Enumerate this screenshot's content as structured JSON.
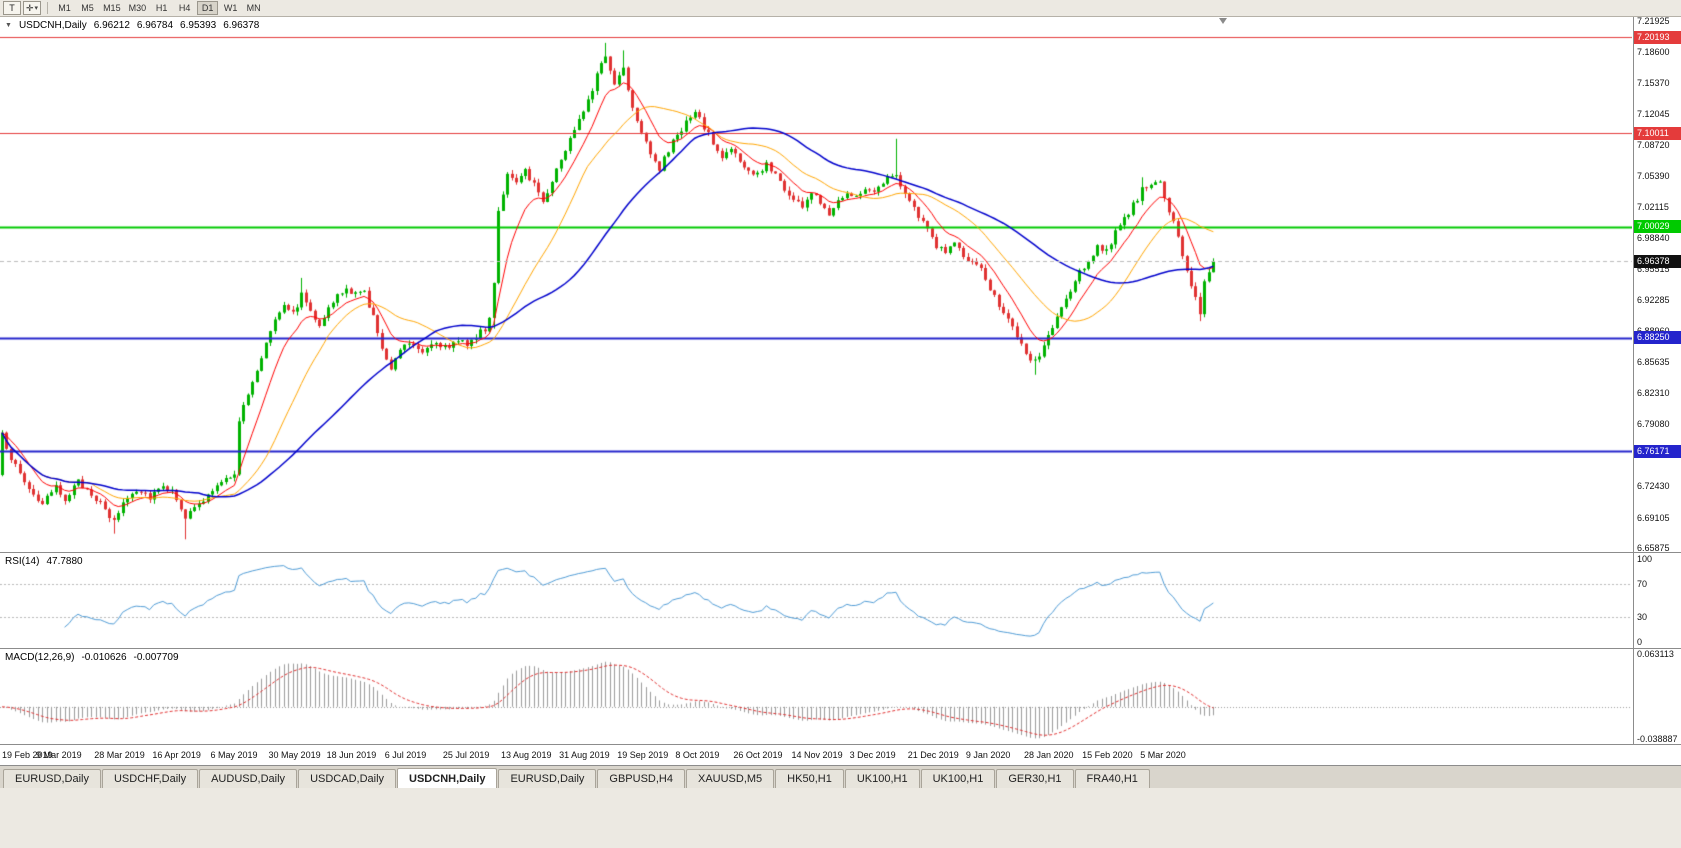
{
  "toolbar": {
    "tool_button_label": "T",
    "cursor_icon": "✛",
    "caret_icon": "▾",
    "timeframes": [
      "M1",
      "M5",
      "M15",
      "M30",
      "H1",
      "H4",
      "D1",
      "W1",
      "MN"
    ],
    "active_timeframe": "D1"
  },
  "main_chart": {
    "collapse_icon": "▼",
    "symbol_label": "USDCNH,Daily",
    "open": "6.96212",
    "high": "6.96784",
    "low": "6.95393",
    "close": "6.96378",
    "y_ticks": [
      "7.21925",
      "7.18600",
      "7.15370",
      "7.12045",
      "7.08720",
      "7.05390",
      "7.02115",
      "6.98840",
      "6.95515",
      "6.92285",
      "6.88960",
      "6.85635",
      "6.82310",
      "6.79080",
      "6.75755",
      "6.72430",
      "6.69105",
      "6.65875"
    ],
    "hlines": [
      {
        "value": 7.20193,
        "label": "7.20193",
        "color": "#e43b3b",
        "width": 1
      },
      {
        "value": 7.10011,
        "label": "7.10011",
        "color": "#e43b3b",
        "width": 1
      },
      {
        "value": 7.00029,
        "label": "7.00029",
        "color": "#00ca00",
        "width": 2
      },
      {
        "value": 6.8825,
        "label": "6.88250",
        "color": "#2424cc",
        "width": 2
      },
      {
        "value": 6.76171,
        "label": "6.76171",
        "color": "#2424cc",
        "width": 2
      }
    ],
    "current_price": {
      "value": 6.96378,
      "label": "6.96378",
      "line_color": "#bbbbbb",
      "tag_color": "#101010"
    }
  },
  "rsi_panel": {
    "label": "RSI(14)",
    "value": "47.7880",
    "levels": [
      {
        "value": 100,
        "label": "100"
      },
      {
        "value": 70,
        "label": "70"
      },
      {
        "value": 30,
        "label": "30"
      },
      {
        "value": 0,
        "label": "0"
      }
    ],
    "dashed_levels": [
      70,
      30
    ],
    "line_color": "#4f9bd5"
  },
  "macd_panel": {
    "label": "MACD(12,26,9)",
    "macd_value": "-0.010626",
    "signal_value": "-0.007709",
    "axis_labels": [
      {
        "value": 0.063113,
        "label": "0.063113"
      },
      {
        "value": -0.038887,
        "label": "-0.038887"
      }
    ],
    "range": [
      -0.038887,
      0.063113
    ],
    "histogram_color": "#9b9b9b",
    "signal_color": "#e03030"
  },
  "time_axis": {
    "labels": [
      "19 Feb 2019",
      "9 Mar 2019",
      "28 Mar 2019",
      "16 Apr 2019",
      "6 May 2019",
      "30 May 2019",
      "18 Jun 2019",
      "6 Jul 2019",
      "25 Jul 2019",
      "13 Aug 2019",
      "31 Aug 2019",
      "19 Sep 2019",
      "8 Oct 2019",
      "26 Oct 2019",
      "14 Nov 2019",
      "3 Dec 2019",
      "21 Dec 2019",
      "9 Jan 2020",
      "28 Jan 2020",
      "15 Feb 2020",
      "5 Mar 2020"
    ]
  },
  "tabs": [
    "EURUSD,Daily",
    "USDCHF,Daily",
    "AUDUSD,Daily",
    "USDCAD,Daily",
    "USDCNH,Daily",
    "EURUSD,Daily",
    "GBPUSD,H4",
    "XAUUSD,M5",
    "HK50,H1",
    "UK100,H1",
    "UK100,H1",
    "GER30,H1",
    "FRA40,H1"
  ],
  "active_tab": "USDCNH,Daily",
  "chart_data": {
    "type": "candlestick",
    "symbol": "USDCNH",
    "period": "Daily",
    "bars": 272,
    "bar_spacing": 4.47,
    "candle_width": 3,
    "seed": 987654321,
    "noise": 0.0038,
    "wick": 0.0045,
    "y_range": [
      6.6545,
      7.2235
    ],
    "up_color": "#00b200",
    "down_color": "#e03232",
    "x_labels_every_bars": 13,
    "close_anchors": [
      [
        0,
        6.778
      ],
      [
        3,
        6.745
      ],
      [
        6,
        6.722
      ],
      [
        9,
        6.705
      ],
      [
        12,
        6.722
      ],
      [
        14,
        6.712
      ],
      [
        17,
        6.728
      ],
      [
        20,
        6.718
      ],
      [
        23,
        6.698
      ],
      [
        25,
        6.686
      ],
      [
        27,
        6.708
      ],
      [
        30,
        6.722
      ],
      [
        33,
        6.714
      ],
      [
        36,
        6.727
      ],
      [
        39,
        6.713
      ],
      [
        41,
        6.692
      ],
      [
        44,
        6.704
      ],
      [
        47,
        6.72
      ],
      [
        50,
        6.731
      ],
      [
        52,
        6.74
      ],
      [
        53,
        6.795
      ],
      [
        55,
        6.822
      ],
      [
        57,
        6.846
      ],
      [
        59,
        6.878
      ],
      [
        61,
        6.904
      ],
      [
        63,
        6.92
      ],
      [
        65,
        6.908
      ],
      [
        67,
        6.928
      ],
      [
        69,
        6.912
      ],
      [
        71,
        6.898
      ],
      [
        73,
        6.913
      ],
      [
        75,
        6.926
      ],
      [
        77,
        6.934
      ],
      [
        79,
        6.928
      ],
      [
        81,
        6.931
      ],
      [
        83,
        6.905
      ],
      [
        85,
        6.868
      ],
      [
        87,
        6.852
      ],
      [
        89,
        6.872
      ],
      [
        91,
        6.878
      ],
      [
        94,
        6.87
      ],
      [
        97,
        6.879
      ],
      [
        100,
        6.869
      ],
      [
        102,
        6.881
      ],
      [
        104,
        6.877
      ],
      [
        106,
        6.884
      ],
      [
        108,
        6.891
      ],
      [
        109,
        6.903
      ],
      [
        110,
        6.944
      ],
      [
        111,
        7.018
      ],
      [
        113,
        7.056
      ],
      [
        115,
        7.044
      ],
      [
        117,
        7.061
      ],
      [
        119,
        7.046
      ],
      [
        121,
        7.028
      ],
      [
        123,
        7.05
      ],
      [
        125,
        7.072
      ],
      [
        127,
        7.093
      ],
      [
        129,
        7.117
      ],
      [
        131,
        7.136
      ],
      [
        133,
        7.161
      ],
      [
        135,
        7.183
      ],
      [
        137,
        7.152
      ],
      [
        139,
        7.171
      ],
      [
        141,
        7.127
      ],
      [
        143,
        7.104
      ],
      [
        145,
        7.08
      ],
      [
        147,
        7.062
      ],
      [
        149,
        7.081
      ],
      [
        151,
        7.099
      ],
      [
        153,
        7.111
      ],
      [
        155,
        7.121
      ],
      [
        157,
        7.107
      ],
      [
        159,
        7.089
      ],
      [
        161,
        7.073
      ],
      [
        163,
        7.086
      ],
      [
        165,
        7.068
      ],
      [
        167,
        7.059
      ],
      [
        169,
        7.055
      ],
      [
        171,
        7.067
      ],
      [
        173,
        7.057
      ],
      [
        175,
        7.041
      ],
      [
        177,
        7.029
      ],
      [
        179,
        7.023
      ],
      [
        181,
        7.036
      ],
      [
        183,
        7.027
      ],
      [
        185,
        7.016
      ],
      [
        187,
        7.029
      ],
      [
        189,
        7.039
      ],
      [
        191,
        7.031
      ],
      [
        193,
        7.043
      ],
      [
        195,
        7.036
      ],
      [
        197,
        7.049
      ],
      [
        199,
        7.053
      ],
      [
        200,
        7.059
      ],
      [
        201,
        7.041
      ],
      [
        203,
        7.027
      ],
      [
        205,
        7.011
      ],
      [
        207,
        6.997
      ],
      [
        209,
        6.981
      ],
      [
        211,
        6.974
      ],
      [
        213,
        6.983
      ],
      [
        215,
        6.969
      ],
      [
        217,
        6.961
      ],
      [
        219,
        6.953
      ],
      [
        221,
        6.936
      ],
      [
        223,
        6.919
      ],
      [
        225,
        6.903
      ],
      [
        227,
        6.881
      ],
      [
        229,
        6.864
      ],
      [
        231,
        6.856
      ],
      [
        233,
        6.873
      ],
      [
        235,
        6.894
      ],
      [
        237,
        6.914
      ],
      [
        239,
        6.931
      ],
      [
        241,
        6.951
      ],
      [
        243,
        6.965
      ],
      [
        245,
        6.979
      ],
      [
        247,
        6.976
      ],
      [
        249,
        6.993
      ],
      [
        251,
        7.007
      ],
      [
        253,
        7.024
      ],
      [
        255,
        7.039
      ],
      [
        257,
        7.043
      ],
      [
        259,
        7.047
      ],
      [
        261,
        7.018
      ],
      [
        263,
        6.988
      ],
      [
        265,
        6.954
      ],
      [
        267,
        6.926
      ],
      [
        268,
        6.91
      ],
      [
        269,
        6.941
      ],
      [
        270,
        6.954
      ],
      [
        271,
        6.9638
      ]
    ],
    "spikes": [
      {
        "bar": 25,
        "low": 6.674
      },
      {
        "bar": 41,
        "low": 6.668
      },
      {
        "bar": 67,
        "high": 6.946
      },
      {
        "bar": 110,
        "low": 6.892
      },
      {
        "bar": 135,
        "high": 7.196
      },
      {
        "bar": 139,
        "high": 7.188
      },
      {
        "bar": 200,
        "high": 7.094
      },
      {
        "bar": 231,
        "low": 6.843
      },
      {
        "bar": 255,
        "high": 7.053
      },
      {
        "bar": 268,
        "low": 6.9
      }
    ],
    "moving_averages": [
      {
        "name": "ma-fast",
        "method": "ema",
        "period": 9,
        "color": "#ff0000",
        "width": 1
      },
      {
        "name": "ma-mid",
        "method": "sma",
        "period": 21,
        "color": "#ffa500",
        "width": 1
      },
      {
        "name": "ma-slow",
        "method": "sma",
        "period": 45,
        "color": "#0000cc",
        "width": 1.5
      }
    ],
    "indicators": {
      "rsi": {
        "period": 14
      },
      "macd": {
        "fast": 12,
        "slow": 26,
        "signal": 9
      }
    }
  }
}
